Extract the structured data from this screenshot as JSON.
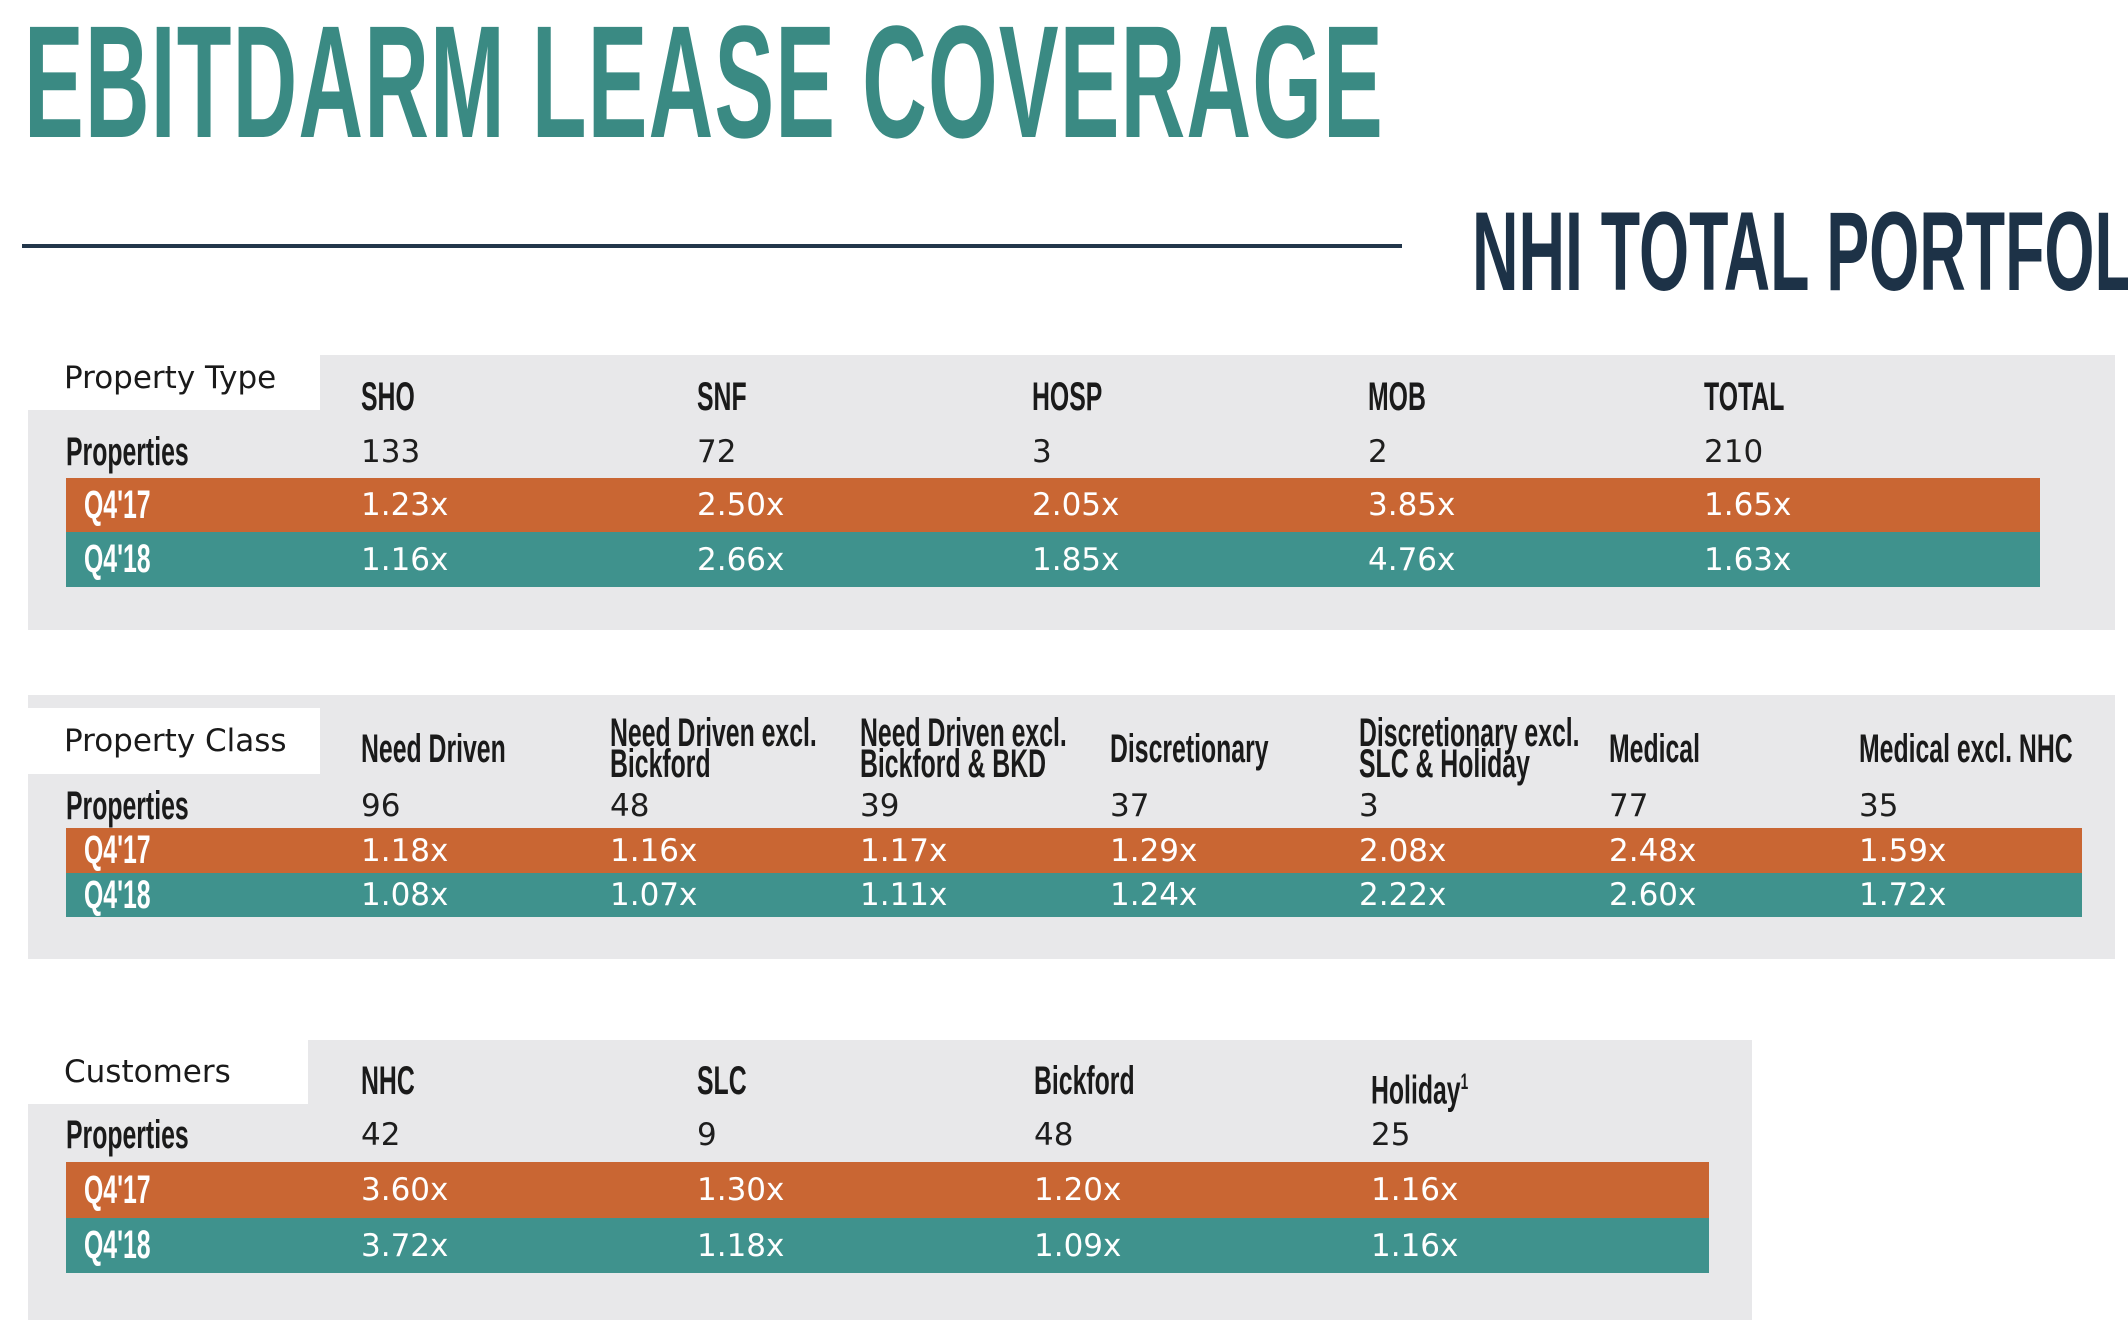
{
  "title": "EBITDARM LEASE COVERAGE",
  "subtitle": "NHI TOTAL PORTFOLIO",
  "colors": {
    "teal_title": "#3a8a83",
    "navy": "#1d3247",
    "orange": "#c96633",
    "teal": "#3f928d",
    "panel": "#e8e8ea"
  },
  "property_type": {
    "tab_label": "Property Type",
    "columns": [
      "SHO",
      "SNF",
      "HOSP",
      "MOB",
      "TOTAL"
    ],
    "rows": [
      {
        "label": "Properties",
        "values": [
          "133",
          "72",
          "3",
          "2",
          "210"
        ]
      },
      {
        "label": "Q4'17",
        "values": [
          "1.23x",
          "2.50x",
          "2.05x",
          "3.85x",
          "1.65x"
        ]
      },
      {
        "label": "Q4'18",
        "values": [
          "1.16x",
          "2.66x",
          "1.85x",
          "4.76x",
          "1.63x"
        ]
      }
    ]
  },
  "property_class": {
    "tab_label": "Property Class",
    "columns": [
      [
        "Need Driven"
      ],
      [
        "Need Driven excl.",
        "Bickford"
      ],
      [
        "Need Driven excl.",
        "Bickford & BKD"
      ],
      [
        "Discretionary"
      ],
      [
        "Discretionary excl.",
        "SLC & Holiday"
      ],
      [
        "Medical"
      ],
      [
        "Medical excl. NHC"
      ]
    ],
    "rows": [
      {
        "label": "Properties",
        "values": [
          "96",
          "48",
          "39",
          "37",
          "3",
          "77",
          "35"
        ]
      },
      {
        "label": "Q4'17",
        "values": [
          "1.18x",
          "1.16x",
          "1.17x",
          "1.29x",
          "2.08x",
          "2.48x",
          "1.59x"
        ]
      },
      {
        "label": "Q4'18",
        "values": [
          "1.08x",
          "1.07x",
          "1.11x",
          "1.24x",
          "2.22x",
          "2.60x",
          "1.72x"
        ]
      }
    ]
  },
  "customers": {
    "tab_label": "Customers",
    "columns": [
      "NHC",
      "SLC",
      "Bickford",
      "Holiday"
    ],
    "holiday_footnote": "1",
    "rows": [
      {
        "label": "Properties",
        "values": [
          "42",
          "9",
          "48",
          "25"
        ]
      },
      {
        "label": "Q4'17",
        "values": [
          "3.60x",
          "1.30x",
          "1.20x",
          "1.16x"
        ]
      },
      {
        "label": "Q4'18",
        "values": [
          "3.72x",
          "1.18x",
          "1.09x",
          "1.16x"
        ]
      }
    ]
  }
}
